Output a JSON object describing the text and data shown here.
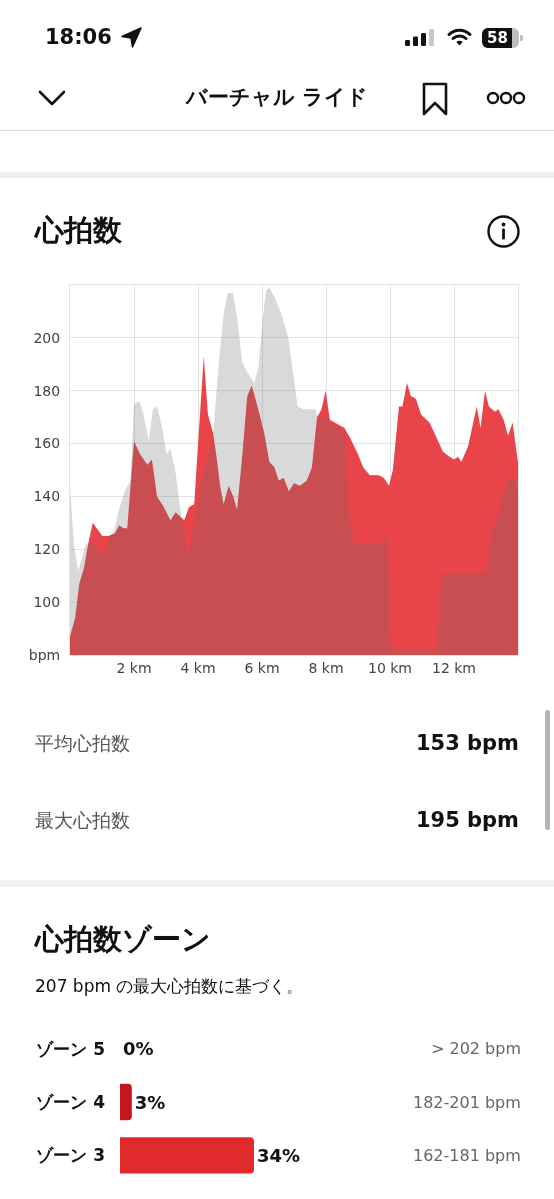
{
  "chart_data": [
    {
      "type": "other",
      "title": "バーチャル ライド",
      "annotations": [
        "18:06",
        "58"
      ]
    },
    {
      "type": "area",
      "title": "心拍数",
      "xlim": [
        0,
        14
      ],
      "xticks": [
        {
          "value": 0,
          "label": null
        },
        {
          "value": 2,
          "label": "2 km"
        },
        {
          "value": 4,
          "label": "4 km"
        },
        {
          "value": 6,
          "label": "6 km"
        },
        {
          "value": 8,
          "label": "8 km"
        },
        {
          "value": 10,
          "label": "10 km"
        },
        {
          "value": 12,
          "label": "12 km"
        },
        {
          "value": 14,
          "label": null
        }
      ],
      "ylim": [
        80,
        220
      ],
      "yticks": [
        {
          "value": 80,
          "label": "bpm"
        },
        100,
        120,
        140,
        160,
        180,
        200,
        {
          "value": 220,
          "label": null
        }
      ],
      "grid": true,
      "series": [
        {
          "color": "#e8444a",
          "x": [
            0,
            0.16,
            0.29,
            0.44,
            0.55,
            0.71,
            1.01,
            1.19,
            1.4,
            1.53,
            1.68,
            1.79,
            2,
            2.19,
            2.42,
            2.56,
            2.72,
            2.93,
            3.14,
            3.3,
            3.57,
            3.72,
            3.88,
            4.18,
            4.31,
            4.47,
            4.59,
            4.69,
            4.8,
            4.96,
            5.1,
            5.22,
            5.35,
            5.54,
            5.68,
            5.86,
            6.07,
            6.23,
            6.39,
            6.52,
            6.68,
            6.84,
            7,
            7.19,
            7.4,
            7.56,
            7.72,
            7.86,
            7.99,
            8.12,
            8.41,
            8.57,
            8.76,
            9,
            9.16,
            9.37,
            9.65,
            9.81,
            9.97,
            10.09,
            10.28,
            10.39,
            10.53,
            10.65,
            10.81,
            10.97,
            11.23,
            11.39,
            11.65,
            11.86,
            12,
            12.13,
            12.23,
            12.44,
            12.71,
            12.83,
            12.97,
            13.09,
            13.28,
            13.39,
            13.55,
            13.69,
            13.83,
            13.93,
            14
          ],
          "values": [
            87,
            94,
            107,
            113,
            121,
            130,
            125,
            125,
            126,
            129,
            128,
            128,
            161,
            156,
            152,
            154,
            140,
            136,
            131,
            134,
            131,
            136,
            137,
            193,
            171,
            164,
            154,
            144,
            137,
            144,
            140,
            135,
            151,
            178,
            182,
            174,
            164,
            153,
            151,
            146,
            147,
            142,
            145,
            144,
            146,
            151,
            170,
            173,
            180,
            169,
            167,
            166,
            162,
            156,
            151,
            148,
            148,
            147,
            144,
            150,
            174,
            174,
            183,
            178,
            177,
            171,
            168,
            164,
            157,
            155,
            154,
            155,
            153,
            159,
            174,
            166,
            180,
            174,
            172,
            173,
            169,
            163,
            168,
            159,
            153
          ]
        },
        {
          "color": "#d9d9d9",
          "x": [
            0,
            0.13,
            0.26,
            0.5,
            0.66,
            0.81,
            1.01,
            1.13,
            1.26,
            1.4,
            1.53,
            1.71,
            1.89,
            2,
            2.17,
            2.3,
            2.46,
            2.59,
            2.72,
            2.88,
            3.02,
            3.14,
            3.3,
            3.46,
            3.59,
            3.69,
            3.88,
            4.09,
            4.36,
            4.48,
            4.64,
            4.8,
            4.93,
            5.09,
            5.22,
            5.38,
            5.54,
            5.76,
            5.89,
            6.02,
            6.13,
            6.23,
            6.41,
            6.63,
            6.82,
            6.98,
            7.11,
            7.3,
            7.67,
            7.76,
            7.86,
            7.99,
            8.12,
            8.41,
            8.57,
            8.68,
            8.77,
            8.89,
            9.43,
            9.71,
            9.92,
            10.02,
            10.34,
            10.76,
            11.18,
            11.47,
            11.6,
            13.02,
            13.18,
            13.34,
            13.49,
            13.71,
            13.92,
            14
          ],
          "values": [
            144,
            121,
            112,
            122,
            123,
            121,
            118,
            121,
            125,
            128,
            135,
            142,
            146,
            175,
            176,
            171,
            161,
            173,
            174,
            166,
            156,
            158,
            149,
            134,
            125,
            117,
            130,
            146,
            156,
            165,
            189,
            209,
            217,
            217,
            208,
            191,
            187,
            183,
            189,
            207,
            218,
            219,
            215,
            208,
            200,
            186,
            174,
            173,
            173,
            169,
            170,
            171,
            167,
            166,
            164,
            140,
            127,
            122,
            122,
            122,
            125,
            82,
            82,
            82,
            82,
            81,
            111,
            111,
            127,
            131,
            139,
            147,
            146,
            141
          ]
        }
      ]
    },
    {
      "type": "other",
      "annotations": [
        "平均心拍数",
        "153 bpm",
        "最大心拍数",
        "195 bpm"
      ]
    },
    {
      "type": "bar",
      "orientation": "horizontal",
      "title": "心拍数ゾーン",
      "subtitle": "207 bpm の最大心拍数に基づく。",
      "categories": [
        "ゾーン 5",
        "ゾーン 4",
        "ゾーン 3"
      ],
      "y2_categories": [
        "> 202 bpm",
        "182-201 bpm",
        "162-181 bpm"
      ],
      "values": [
        0,
        3,
        34
      ],
      "value_labels": [
        "0%",
        "3%",
        "34%"
      ],
      "colors": [
        "#8b1316",
        "#c3161d",
        "#e02a2c"
      ],
      "tick_labels": "y"
    }
  ]
}
